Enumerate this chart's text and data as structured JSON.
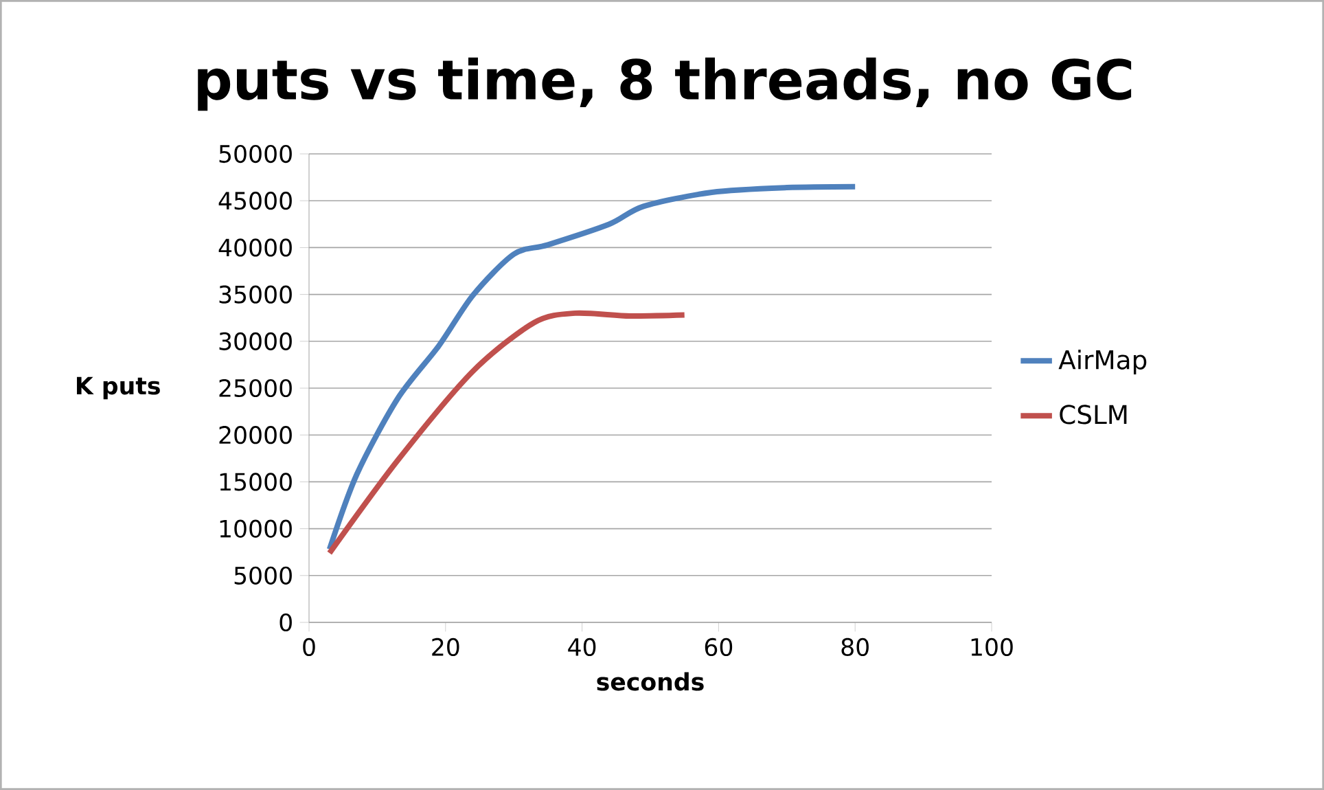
{
  "chart_data": {
    "type": "line",
    "title": "puts vs time, 8 threads, no GC",
    "xlabel": "seconds",
    "ylabel": "K puts",
    "xlim": [
      0,
      100
    ],
    "xticks": [
      0,
      20,
      40,
      60,
      80,
      100
    ],
    "ylim": [
      0,
      50000
    ],
    "yticks": [
      0,
      5000,
      10000,
      15000,
      20000,
      25000,
      30000,
      35000,
      40000,
      45000,
      50000
    ],
    "grid": "y",
    "legend": "right",
    "series": [
      {
        "name": "AirMap",
        "color": "#4f81bd",
        "x": [
          3,
          7,
          13,
          19,
          24,
          30,
          35,
          44,
          49,
          59,
          70,
          80
        ],
        "values": [
          7800,
          15800,
          23900,
          29500,
          34900,
          39300,
          40300,
          42500,
          44400,
          45900,
          46400,
          46500
        ]
      },
      {
        "name": "CSLM",
        "color": "#c0504d",
        "x": [
          3,
          13,
          24,
          33,
          39,
          47,
          55
        ],
        "values": [
          7400,
          17300,
          26800,
          32000,
          33000,
          32700,
          32800
        ]
      }
    ]
  }
}
